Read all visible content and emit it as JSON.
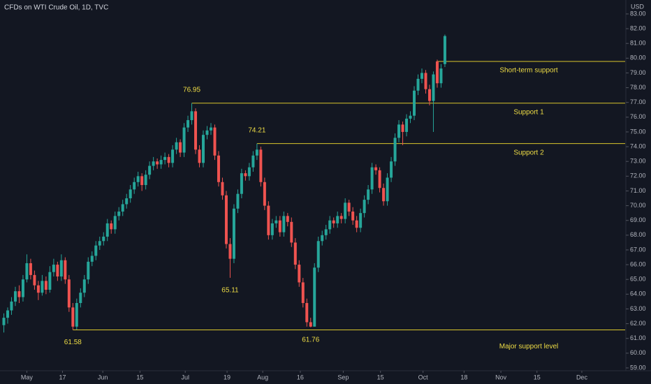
{
  "chart_data": {
    "type": "candlestick",
    "title": "CFDs on WTI Crude Oil, 1D, TVC",
    "y_axis_label": "USD",
    "up_color": "#26a69a",
    "down_color": "#ef5350",
    "level_color": "#d9c62c",
    "grid": false,
    "candles": [
      [
        61.9,
        62.7,
        61.4,
        62.4
      ],
      [
        62.4,
        63.1,
        62.0,
        62.9
      ],
      [
        62.9,
        63.8,
        62.6,
        63.5
      ],
      [
        63.5,
        64.5,
        63.2,
        64.2
      ],
      [
        64.2,
        64.6,
        63.4,
        63.8
      ],
      [
        63.8,
        65.3,
        63.5,
        65.0
      ],
      [
        65.0,
        66.7,
        64.8,
        66.1
      ],
      [
        66.1,
        66.4,
        65.0,
        65.3
      ],
      [
        65.3,
        65.6,
        64.3,
        64.6
      ],
      [
        64.6,
        64.9,
        63.6,
        64.1
      ],
      [
        64.1,
        65.3,
        63.9,
        64.9
      ],
      [
        64.9,
        65.2,
        64.0,
        64.3
      ],
      [
        64.3,
        65.9,
        64.1,
        65.5
      ],
      [
        65.5,
        66.4,
        65.2,
        66.0
      ],
      [
        66.0,
        66.2,
        64.9,
        65.2
      ],
      [
        65.2,
        66.7,
        64.9,
        66.3
      ],
      [
        66.3,
        66.5,
        64.7,
        65.0
      ],
      [
        65.0,
        65.3,
        62.8,
        63.1
      ],
      [
        63.1,
        63.4,
        61.58,
        61.8
      ],
      [
        61.8,
        63.7,
        61.6,
        63.4
      ],
      [
        63.4,
        64.4,
        63.1,
        64.1
      ],
      [
        64.1,
        65.3,
        63.8,
        65.0
      ],
      [
        65.0,
        66.5,
        64.7,
        66.2
      ],
      [
        66.2,
        66.9,
        65.9,
        66.6
      ],
      [
        66.6,
        67.6,
        66.3,
        67.3
      ],
      [
        67.3,
        67.9,
        67.0,
        67.6
      ],
      [
        67.6,
        68.2,
        67.3,
        67.9
      ],
      [
        67.9,
        69.1,
        67.6,
        68.8
      ],
      [
        68.8,
        69.0,
        68.1,
        68.4
      ],
      [
        68.4,
        69.6,
        68.1,
        69.3
      ],
      [
        69.3,
        69.9,
        69.0,
        69.6
      ],
      [
        69.6,
        70.4,
        69.3,
        70.1
      ],
      [
        70.1,
        70.8,
        69.8,
        70.5
      ],
      [
        70.5,
        71.4,
        70.2,
        71.1
      ],
      [
        71.1,
        71.9,
        70.8,
        71.6
      ],
      [
        71.6,
        72.3,
        71.3,
        72.0
      ],
      [
        72.0,
        72.2,
        71.0,
        71.4
      ],
      [
        71.4,
        72.4,
        71.1,
        72.1
      ],
      [
        72.1,
        73.0,
        71.8,
        72.7
      ],
      [
        72.7,
        73.3,
        72.4,
        73.0
      ],
      [
        73.0,
        73.2,
        72.5,
        72.8
      ],
      [
        72.8,
        73.4,
        72.5,
        73.1
      ],
      [
        73.1,
        73.6,
        72.8,
        73.3
      ],
      [
        73.3,
        73.5,
        72.6,
        72.9
      ],
      [
        72.9,
        74.1,
        72.6,
        73.8
      ],
      [
        73.8,
        74.6,
        73.5,
        74.3
      ],
      [
        74.3,
        74.5,
        73.3,
        73.6
      ],
      [
        73.6,
        75.6,
        73.3,
        75.3
      ],
      [
        75.3,
        76.1,
        75.0,
        75.8
      ],
      [
        75.8,
        76.95,
        75.5,
        76.4
      ],
      [
        76.4,
        76.6,
        73.5,
        73.8
      ],
      [
        73.8,
        74.1,
        72.6,
        72.9
      ],
      [
        72.9,
        75.1,
        72.6,
        74.8
      ],
      [
        74.8,
        75.4,
        74.5,
        75.1
      ],
      [
        75.1,
        75.6,
        74.8,
        75.3
      ],
      [
        75.3,
        75.5,
        73.1,
        73.4
      ],
      [
        73.4,
        73.7,
        71.3,
        71.6
      ],
      [
        71.6,
        71.9,
        70.4,
        70.7
      ],
      [
        70.7,
        71.0,
        67.1,
        67.4
      ],
      [
        67.4,
        67.8,
        65.11,
        66.4
      ],
      [
        66.4,
        70.1,
        66.1,
        69.8
      ],
      [
        69.8,
        71.1,
        69.5,
        70.8
      ],
      [
        70.8,
        72.5,
        70.5,
        72.2
      ],
      [
        72.2,
        72.4,
        71.7,
        72.0
      ],
      [
        72.0,
        72.9,
        71.7,
        72.6
      ],
      [
        72.6,
        73.7,
        72.3,
        73.4
      ],
      [
        73.4,
        74.21,
        73.1,
        73.8
      ],
      [
        73.8,
        74.0,
        71.3,
        71.6
      ],
      [
        71.6,
        71.9,
        69.7,
        70.0
      ],
      [
        70.0,
        70.3,
        67.7,
        68.0
      ],
      [
        68.0,
        69.1,
        67.7,
        68.8
      ],
      [
        68.8,
        69.3,
        68.5,
        69.0
      ],
      [
        69.0,
        69.3,
        67.9,
        68.2
      ],
      [
        68.2,
        69.6,
        67.9,
        69.3
      ],
      [
        69.3,
        69.5,
        68.6,
        68.9
      ],
      [
        68.9,
        69.2,
        67.2,
        67.5
      ],
      [
        67.5,
        67.8,
        65.7,
        66.0
      ],
      [
        66.0,
        66.3,
        64.5,
        64.8
      ],
      [
        64.8,
        65.1,
        63.1,
        63.4
      ],
      [
        63.4,
        63.7,
        61.8,
        62.1
      ],
      [
        62.1,
        62.4,
        61.76,
        61.8
      ],
      [
        61.8,
        66.1,
        61.8,
        65.8
      ],
      [
        65.8,
        67.9,
        65.5,
        67.6
      ],
      [
        67.6,
        68.3,
        67.3,
        68.0
      ],
      [
        68.0,
        68.7,
        67.7,
        68.4
      ],
      [
        68.4,
        69.3,
        68.1,
        69.0
      ],
      [
        69.0,
        69.2,
        68.5,
        68.8
      ],
      [
        68.8,
        69.6,
        68.5,
        69.3
      ],
      [
        69.3,
        69.5,
        68.8,
        69.1
      ],
      [
        69.1,
        70.5,
        68.8,
        70.2
      ],
      [
        70.2,
        70.4,
        69.3,
        69.6
      ],
      [
        69.6,
        69.9,
        68.7,
        69.0
      ],
      [
        69.0,
        69.3,
        68.2,
        68.5
      ],
      [
        68.5,
        69.8,
        68.2,
        69.5
      ],
      [
        69.5,
        70.7,
        69.2,
        70.4
      ],
      [
        70.4,
        71.4,
        70.1,
        71.1
      ],
      [
        71.1,
        72.9,
        70.8,
        72.6
      ],
      [
        72.6,
        72.8,
        72.1,
        72.4
      ],
      [
        72.4,
        72.6,
        70.9,
        71.2
      ],
      [
        71.2,
        71.5,
        70.0,
        70.3
      ],
      [
        70.3,
        72.2,
        70.0,
        71.9
      ],
      [
        71.9,
        73.3,
        71.6,
        73.0
      ],
      [
        73.0,
        74.9,
        72.7,
        74.6
      ],
      [
        74.6,
        75.8,
        74.3,
        75.5
      ],
      [
        75.5,
        75.7,
        74.1,
        75.0
      ],
      [
        75.0,
        76.2,
        74.7,
        75.9
      ],
      [
        75.9,
        76.4,
        75.6,
        76.1
      ],
      [
        76.1,
        78.1,
        75.8,
        77.8
      ],
      [
        77.8,
        78.9,
        77.5,
        78.6
      ],
      [
        78.6,
        79.3,
        78.3,
        79.0
      ],
      [
        79.0,
        79.2,
        77.6,
        77.9
      ],
      [
        77.9,
        78.2,
        76.8,
        77.1
      ],
      [
        77.1,
        79.1,
        75.0,
        78.9
      ],
      [
        79.78,
        79.9,
        78.0,
        78.3
      ],
      [
        78.3,
        79.6,
        78.0,
        79.3
      ],
      [
        79.6,
        81.6,
        79.4,
        81.5
      ]
    ],
    "extremes": [
      76.95,
      74.21,
      65.11,
      61.58,
      61.76
    ],
    "levels": [
      {
        "value": 79.78,
        "label": "Short-term support"
      },
      {
        "value": 76.95,
        "label": "Support 1"
      },
      {
        "value": 74.21,
        "label": "Support 2"
      },
      {
        "value": 61.58,
        "label": "Major support level"
      }
    ],
    "xlim": [
      -1,
      162
    ],
    "xticks": [
      {
        "value": 6,
        "label": "May"
      },
      {
        "value": 15.3,
        "label": "17"
      },
      {
        "value": 25.8,
        "label": "Jun"
      },
      {
        "value": 35.5,
        "label": "15"
      },
      {
        "value": 47.3,
        "label": "Jul"
      },
      {
        "value": 58.2,
        "label": "19"
      },
      {
        "value": 67.5,
        "label": "Aug"
      },
      {
        "value": 77.3,
        "label": "16"
      },
      {
        "value": 88.5,
        "label": "Sep"
      },
      {
        "value": 98.2,
        "label": "15"
      },
      {
        "value": 109.3,
        "label": "Oct"
      },
      {
        "value": 120,
        "label": "18"
      },
      {
        "value": 129.6,
        "label": "Nov"
      },
      {
        "value": 139,
        "label": "15"
      },
      {
        "value": 150.7,
        "label": "Dec"
      }
    ],
    "ylim": [
      58.62,
      83.4
    ],
    "yticks": [
      {
        "value": 59,
        "label": "59.00"
      },
      {
        "value": 60,
        "label": "60.00"
      },
      {
        "value": 61,
        "label": "61.00"
      },
      {
        "value": 62,
        "label": "62.00"
      },
      {
        "value": 63,
        "label": "63.00"
      },
      {
        "value": 64,
        "label": "64.00"
      },
      {
        "value": 65,
        "label": "65.00"
      },
      {
        "value": 66,
        "label": "66.00"
      },
      {
        "value": 67,
        "label": "67.00"
      },
      {
        "value": 68,
        "label": "68.00"
      },
      {
        "value": 69,
        "label": "69.00"
      },
      {
        "value": 70,
        "label": "70.00"
      },
      {
        "value": 71,
        "label": "71.00"
      },
      {
        "value": 72,
        "label": "72.00"
      },
      {
        "value": 73,
        "label": "73.00"
      },
      {
        "value": 74,
        "label": "74.00"
      },
      {
        "value": 75,
        "label": "75.00"
      },
      {
        "value": 76,
        "label": "76.00"
      },
      {
        "value": 77,
        "label": "77.00"
      },
      {
        "value": 78,
        "label": "78.00"
      },
      {
        "value": 79,
        "label": "79.00"
      },
      {
        "value": 80,
        "label": "80.00"
      },
      {
        "value": 81,
        "label": "81.00"
      },
      {
        "value": 82,
        "label": "82.00"
      },
      {
        "value": 83,
        "label": "83.00"
      }
    ]
  }
}
